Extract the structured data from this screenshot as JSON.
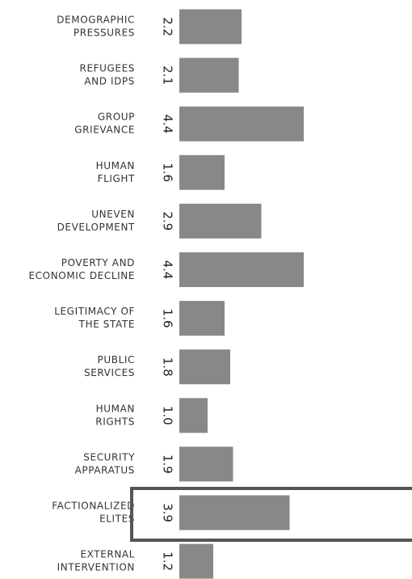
{
  "chart_data": {
    "type": "bar",
    "orientation": "horizontal",
    "categories": [
      [
        "DEMOGRAPHIC",
        "PRESSURES"
      ],
      [
        "REFUGEES",
        "AND IDPS"
      ],
      [
        "GROUP",
        "GRIEVANCE"
      ],
      [
        "HUMAN",
        "FLIGHT"
      ],
      [
        "UNEVEN",
        "DEVELOPMENT"
      ],
      [
        "POVERTY AND",
        "ECONOMIC DECLINE"
      ],
      [
        "LEGITIMACY OF",
        "THE STATE"
      ],
      [
        "PUBLIC",
        "SERVICES"
      ],
      [
        "HUMAN",
        "RIGHTS"
      ],
      [
        "SECURITY",
        "APPARATUS"
      ],
      [
        "FACTIONALIZED",
        "ELITES"
      ],
      [
        "EXTERNAL",
        "INTERVENTION"
      ]
    ],
    "values": [
      2.2,
      2.1,
      4.4,
      1.6,
      2.9,
      4.4,
      1.6,
      1.8,
      1.0,
      1.9,
      3.9,
      1.2
    ],
    "value_labels": [
      "2.2",
      "2.1",
      "4.4",
      "1.6",
      "2.9",
      "4.4",
      "1.6",
      "1.8",
      "1.0",
      "1.9",
      "3.9",
      "1.2"
    ],
    "color": "#888888"
  }
}
